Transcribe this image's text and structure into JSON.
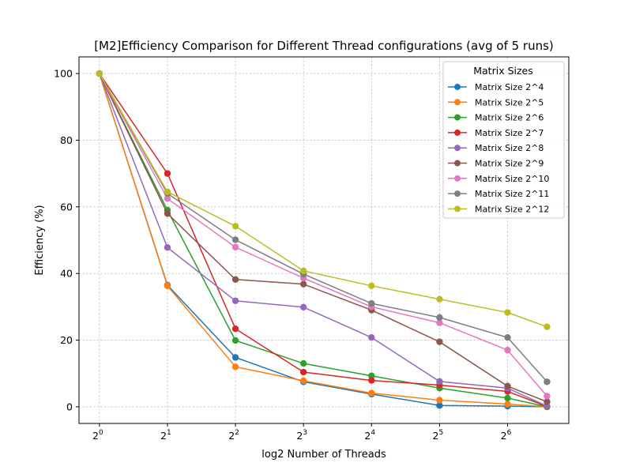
{
  "chart_data": {
    "type": "line",
    "title": "[M2]Efficiency Comparison for Different Thread configurations (avg of 5 runs)",
    "xlabel": "log2 Number of Threads",
    "ylabel": "Efficiency (%)",
    "x": [
      0,
      1,
      2,
      3,
      4,
      5,
      6,
      6.58
    ],
    "xticks": [
      0,
      1,
      2,
      3,
      4,
      5,
      6
    ],
    "xtick_base": "2",
    "xtick_exponents": [
      "0",
      "1",
      "2",
      "3",
      "4",
      "5",
      "6"
    ],
    "xlim": [
      -0.3,
      6.9
    ],
    "yticks": [
      0,
      20,
      40,
      60,
      80,
      100
    ],
    "ylim": [
      -5,
      105
    ],
    "grid": true,
    "legend": {
      "title": "Matrix Sizes",
      "placement": "top-right"
    },
    "series": [
      {
        "name": "Matrix Size 2^4",
        "color": "#1f77b4",
        "values": [
          100,
          36.5,
          14.8,
          7.5,
          3.8,
          0.4,
          0.2,
          0.0
        ]
      },
      {
        "name": "Matrix Size 2^5",
        "color": "#ff7f0e",
        "values": [
          100,
          36.3,
          12.0,
          7.8,
          4.1,
          2.0,
          0.8,
          0.0
        ]
      },
      {
        "name": "Matrix Size 2^6",
        "color": "#2ca02c",
        "values": [
          100,
          59.0,
          19.9,
          13.0,
          9.3,
          5.6,
          2.6,
          0.0
        ]
      },
      {
        "name": "Matrix Size 2^7",
        "color": "#d62728",
        "values": [
          100,
          70.0,
          23.4,
          10.4,
          7.9,
          6.5,
          4.6,
          0.1
        ]
      },
      {
        "name": "Matrix Size 2^8",
        "color": "#9467bd",
        "values": [
          100,
          47.8,
          31.8,
          29.9,
          20.8,
          7.6,
          5.6,
          0.2
        ]
      },
      {
        "name": "Matrix Size 2^9",
        "color": "#8c564b",
        "values": [
          100,
          58.0,
          38.2,
          36.8,
          29.0,
          19.5,
          6.2,
          1.5
        ]
      },
      {
        "name": "Matrix Size 2^10",
        "color": "#e377c2",
        "values": [
          100,
          62.5,
          47.9,
          38.6,
          30.0,
          25.2,
          17.0,
          3.2
        ]
      },
      {
        "name": "Matrix Size 2^11",
        "color": "#7f7f7f",
        "values": [
          100,
          64.0,
          50.1,
          39.8,
          31.0,
          26.8,
          20.8,
          7.5
        ]
      },
      {
        "name": "Matrix Size 2^12",
        "color": "#bcbd22",
        "values": [
          100,
          64.5,
          54.2,
          40.8,
          36.3,
          32.3,
          28.3,
          24.0
        ]
      }
    ]
  }
}
